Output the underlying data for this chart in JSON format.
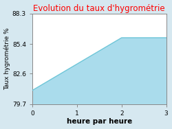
{
  "title": "Evolution du taux d'hygrométrie",
  "xlabel": "heure par heure",
  "ylabel": "Taux hygrométrie %",
  "x": [
    0,
    2,
    3
  ],
  "y": [
    81.0,
    86.0,
    86.0
  ],
  "ylim": [
    79.7,
    88.3
  ],
  "xlim": [
    0,
    3
  ],
  "yticks": [
    79.7,
    82.6,
    85.4,
    88.3
  ],
  "xticks": [
    0,
    1,
    2,
    3
  ],
  "line_color": "#6ec6d8",
  "fill_color": "#aadcec",
  "plot_bg_color": "#ffffff",
  "fig_bg_color": "#d6e8f0",
  "title_color": "#ff0000",
  "title_fontsize": 8.5,
  "xlabel_fontsize": 7.5,
  "ylabel_fontsize": 6.5,
  "tick_fontsize": 6.5,
  "grid_color": "#ffffff",
  "spine_color": "#888888"
}
